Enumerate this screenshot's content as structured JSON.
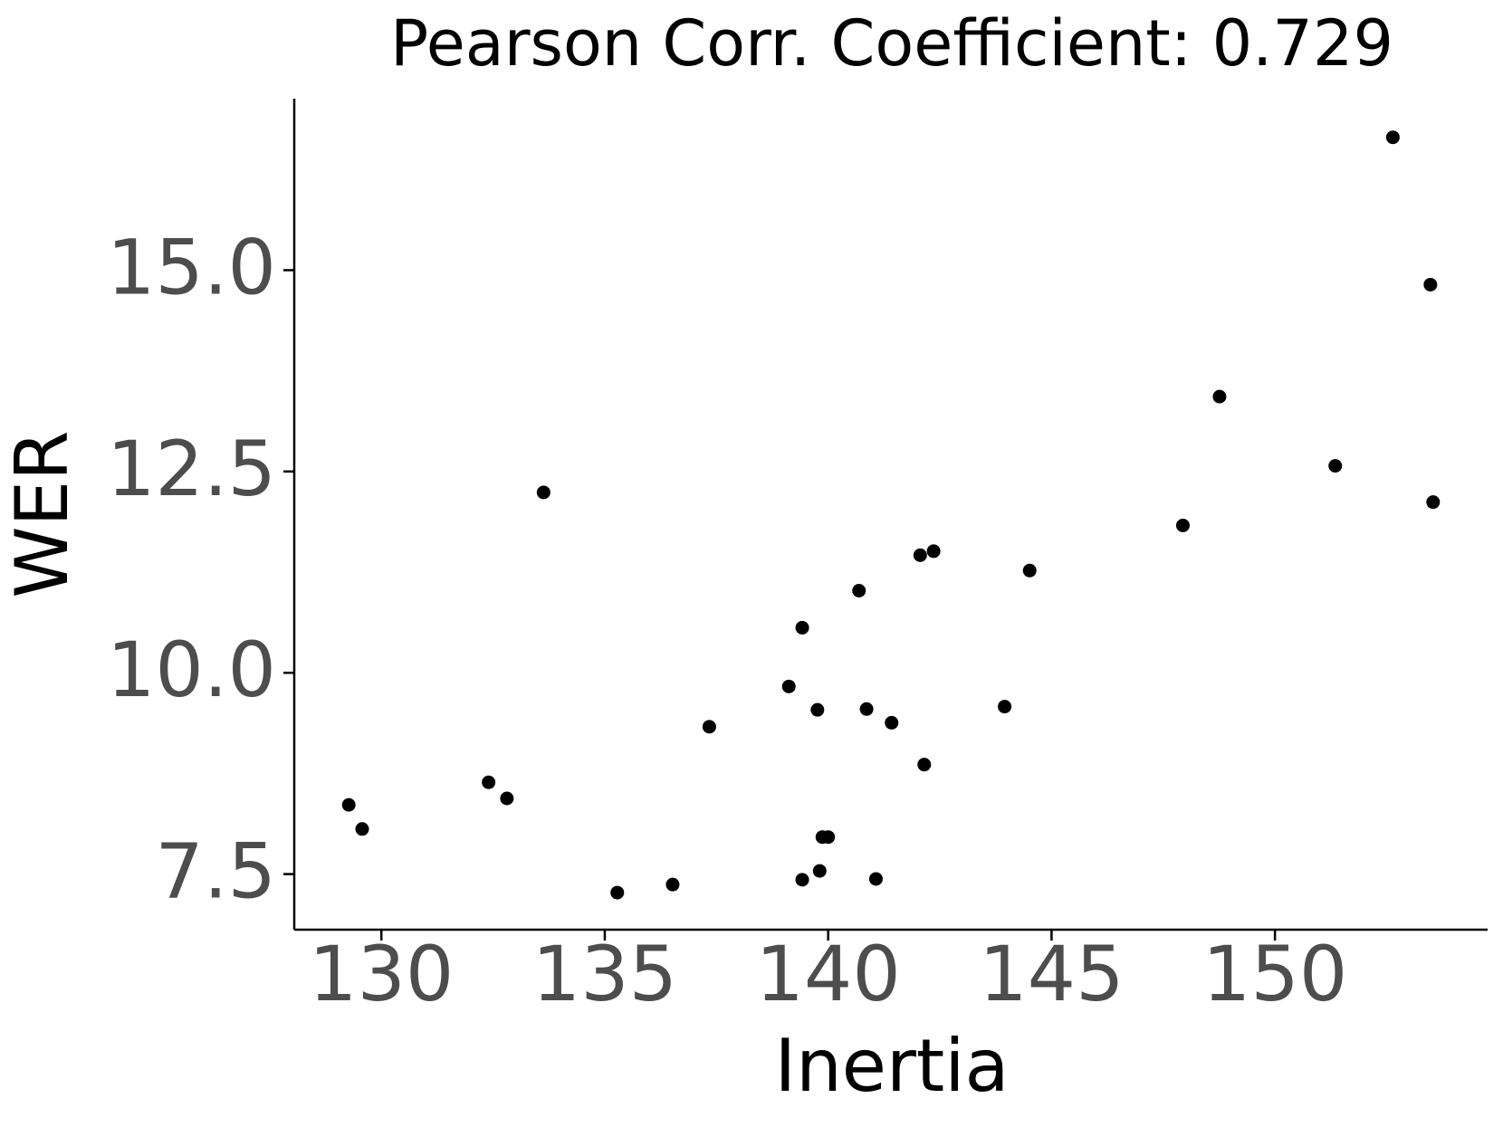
{
  "chart_data": {
    "type": "scatter",
    "title": "Pearson Corr. Coefficient: 0.729",
    "x_label": "Inertia",
    "y_label": "WER",
    "color": "#000000",
    "x": [
      129.27,
      129.57,
      132.4,
      132.81,
      133.63,
      135.28,
      136.52,
      137.34,
      139.12,
      139.42,
      139.42,
      139.76,
      139.81,
      139.87,
      140.0,
      140.69,
      140.86,
      141.07,
      141.42,
      142.06,
      142.15,
      142.36,
      143.95,
      144.51,
      147.94,
      148.76,
      151.35,
      152.64,
      153.48,
      153.54
    ],
    "values": [
      8.36,
      8.06,
      8.64,
      8.44,
      12.24,
      7.27,
      7.37,
      9.33,
      9.83,
      10.56,
      7.43,
      9.54,
      7.54,
      7.96,
      7.96,
      11.02,
      9.55,
      7.44,
      9.38,
      11.46,
      8.86,
      11.51,
      9.58,
      11.27,
      11.83,
      13.43,
      12.57,
      16.65,
      14.82,
      12.12
    ],
    "xlim": [
      128.05,
      154.76
    ],
    "xticks": [
      130,
      135,
      140,
      145,
      150
    ],
    "ylim": [
      6.81,
      17.13
    ],
    "yticks": [
      7.5,
      {
        "value": 10,
        "label": "10.0"
      },
      12.5,
      {
        "value": 15,
        "label": "15.0"
      }
    ],
    "grid": false
  }
}
